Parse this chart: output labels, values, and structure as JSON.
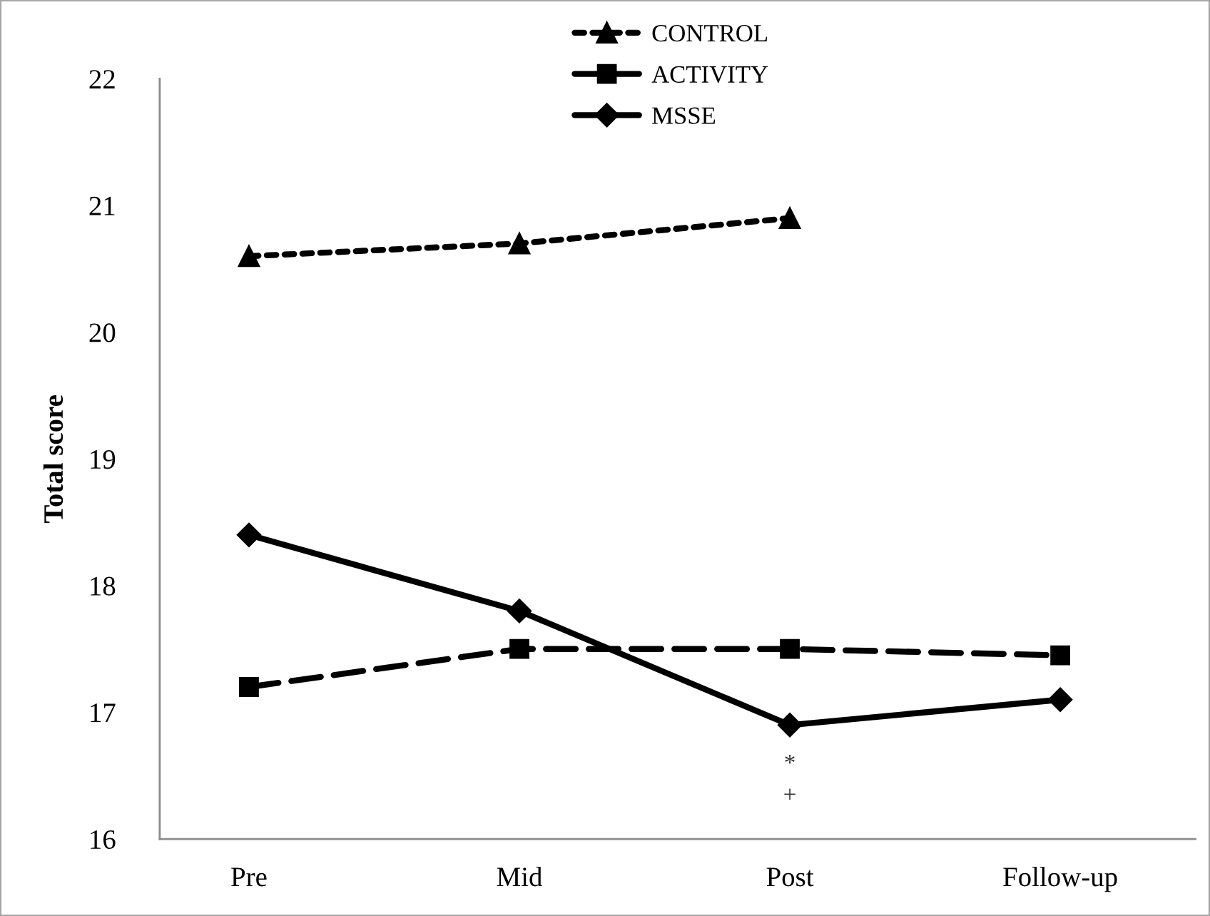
{
  "chart_data": {
    "type": "line",
    "ylabel": "Total score",
    "categories": [
      "Pre",
      "Mid",
      "Post",
      "Follow-up"
    ],
    "series": [
      {
        "name": "CONTROL",
        "color": "#000000",
        "values": [
          20.6,
          20.7,
          20.9,
          null
        ],
        "marker": "triangle",
        "line_style": "dotted"
      },
      {
        "name": "ACTIVITY",
        "color": "#000000",
        "values": [
          17.2,
          17.5,
          17.5,
          17.45
        ],
        "marker": "square",
        "line_style": "dashed"
      },
      {
        "name": "MSSE",
        "color": "#000000",
        "values": [
          18.4,
          17.8,
          16.9,
          17.1
        ],
        "marker": "diamond",
        "line_style": "solid"
      }
    ],
    "ylim": [
      16,
      22
    ],
    "yticks": [
      16,
      17,
      18,
      19,
      20,
      21,
      22
    ],
    "annotations": [
      {
        "text": "*",
        "x": "Post",
        "y": 16.9
      },
      {
        "text": "+",
        "x": "Post",
        "y": 16.9
      }
    ],
    "grid": false,
    "legend": "top"
  }
}
